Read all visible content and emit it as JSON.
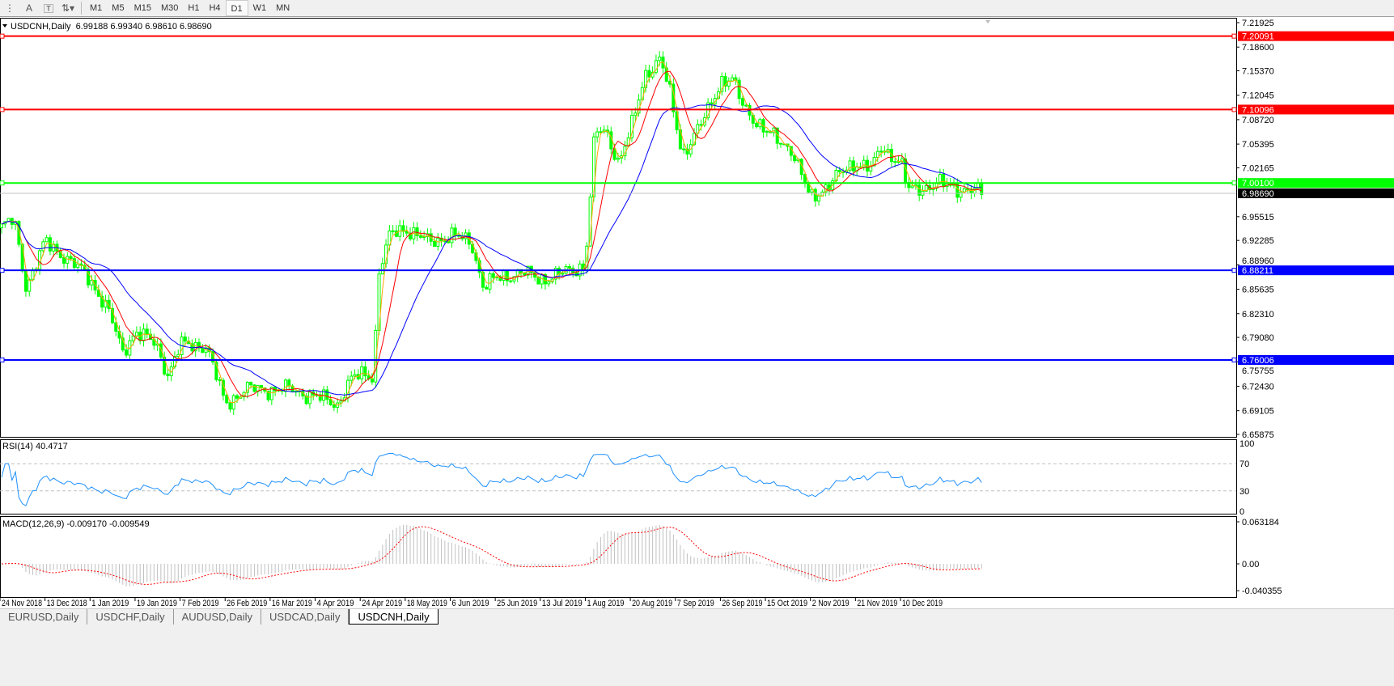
{
  "toolbar": {
    "icons": [
      "fibonacci-fan-icon",
      "text-icon",
      "text-label-icon",
      "arrows-icon"
    ],
    "text_label": "A",
    "timeframes": [
      "M1",
      "M5",
      "M15",
      "M30",
      "H1",
      "H4",
      "D1",
      "W1",
      "MN"
    ],
    "active_timeframe": "D1"
  },
  "chart_header": {
    "symbol": "USDCNH,Daily",
    "ohlc": "6.99188 6.99340 6.98610 6.98690"
  },
  "colors": {
    "bull": "#00ff00",
    "bear": "#00ff00",
    "ma_fast": "#ff0000",
    "ma_faster": "#ffa500",
    "ma_slow": "#0000ff",
    "rsi": "#1e90ff",
    "macd_hist": "#c0c0c0",
    "macd_signal": "#ff0000"
  },
  "chart_data": {
    "type": "candlestick",
    "price_axis_ticks": [
      "7.21925",
      "7.18600",
      "7.15370",
      "7.12045",
      "7.08720",
      "7.05395",
      "7.02165",
      "6.95515",
      "6.92285",
      "6.88960",
      "6.85635",
      "6.82310",
      "6.79080",
      "6.75755",
      "6.72430",
      "6.69105",
      "6.65875"
    ],
    "ylim": [
      6.65875,
      7.21925
    ],
    "date_labels": [
      "24 Nov 2018",
      "13 Dec 2018",
      "1 Jan 2019",
      "19 Jan 2019",
      "7 Feb 2019",
      "26 Feb 2019",
      "16 Mar 2019",
      "4 Apr 2019",
      "24 Apr 2019",
      "18 May 2019",
      "6 Jun 2019",
      "25 Jun 2019",
      "13 Jul 2019",
      "1 Aug 2019",
      "20 Aug 2019",
      "7 Sep 2019",
      "26 Sep 2019",
      "15 Oct 2019",
      "2 Nov 2019",
      "21 Nov 2019",
      "10 Dec 2019"
    ],
    "levels": [
      {
        "price": "7.20091",
        "color": "#ff0000"
      },
      {
        "price": "7.10096",
        "color": "#ff0000"
      },
      {
        "price": "7.00100",
        "color": "#00ff00"
      },
      {
        "price": "6.88211",
        "color": "#0000ff"
      },
      {
        "price": "6.76006",
        "color": "#0000ff"
      }
    ],
    "current_price": "6.98690",
    "close_anchors": [
      [
        "2018-11-24",
        6.94
      ],
      [
        "2018-11-30",
        6.95
      ],
      [
        "2018-12-05",
        6.86
      ],
      [
        "2018-12-13",
        6.92
      ],
      [
        "2018-12-22",
        6.9
      ],
      [
        "2019-01-01",
        6.87
      ],
      [
        "2019-01-08",
        6.83
      ],
      [
        "2019-01-14",
        6.77
      ],
      [
        "2019-01-19",
        6.8
      ],
      [
        "2019-01-28",
        6.78
      ],
      [
        "2019-02-02",
        6.74
      ],
      [
        "2019-02-07",
        6.78
      ],
      [
        "2019-02-18",
        6.78
      ],
      [
        "2019-02-26",
        6.7
      ],
      [
        "2019-03-06",
        6.72
      ],
      [
        "2019-03-16",
        6.72
      ],
      [
        "2019-03-25",
        6.72
      ],
      [
        "2019-04-04",
        6.71
      ],
      [
        "2019-04-14",
        6.7
      ],
      [
        "2019-04-19",
        6.73
      ],
      [
        "2019-04-24",
        6.74
      ],
      [
        "2019-05-01",
        6.74
      ],
      [
        "2019-05-04",
        6.88
      ],
      [
        "2019-05-10",
        6.93
      ],
      [
        "2019-05-18",
        6.94
      ],
      [
        "2019-05-28",
        6.92
      ],
      [
        "2019-06-06",
        6.93
      ],
      [
        "2019-06-15",
        6.92
      ],
      [
        "2019-06-20",
        6.86
      ],
      [
        "2019-06-25",
        6.87
      ],
      [
        "2019-07-05",
        6.88
      ],
      [
        "2019-07-13",
        6.87
      ],
      [
        "2019-07-25",
        6.88
      ],
      [
        "2019-08-01",
        6.89
      ],
      [
        "2019-08-05",
        7.07
      ],
      [
        "2019-08-10",
        7.07
      ],
      [
        "2019-08-15",
        7.03
      ],
      [
        "2019-08-20",
        7.07
      ],
      [
        "2019-08-26",
        7.15
      ],
      [
        "2019-09-01",
        7.17
      ],
      [
        "2019-09-05",
        7.12
      ],
      [
        "2019-09-10",
        7.04
      ],
      [
        "2019-09-18",
        7.08
      ],
      [
        "2019-09-26",
        7.14
      ],
      [
        "2019-10-01",
        7.14
      ],
      [
        "2019-10-05",
        7.11
      ],
      [
        "2019-10-15",
        7.07
      ],
      [
        "2019-10-25",
        7.05
      ],
      [
        "2019-11-02",
        6.98
      ],
      [
        "2019-11-10",
        7.0
      ],
      [
        "2019-11-21",
        7.03
      ],
      [
        "2019-11-28",
        7.02
      ],
      [
        "2019-12-02",
        7.05
      ],
      [
        "2019-12-10",
        7.03
      ],
      [
        "2019-12-13",
        6.99
      ],
      [
        "2019-12-24",
        7.0
      ],
      [
        "2020-01-10",
        6.9869
      ]
    ],
    "rsi": {
      "label": "RSI(14) 40.4717",
      "ticks": [
        "100",
        "70",
        "30",
        "0"
      ],
      "levels": [
        70,
        30
      ]
    },
    "macd": {
      "label": "MACD(12,26,9) -0.009170 -0.009549",
      "ticks": [
        "0.063184",
        "0.00",
        "-0.040355"
      ]
    }
  },
  "tabs": [
    {
      "label": "EURUSD,Daily",
      "active": false
    },
    {
      "label": "USDCHF,Daily",
      "active": false
    },
    {
      "label": "AUDUSD,Daily",
      "active": false
    },
    {
      "label": "USDCAD,Daily",
      "active": false
    },
    {
      "label": "USDCNH,Daily",
      "active": true
    }
  ]
}
